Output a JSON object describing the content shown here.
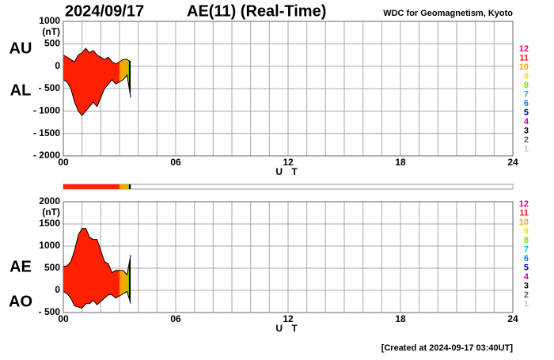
{
  "header": {
    "date": "2024/09/17",
    "title": "AE(11) (Real-Time)",
    "source": "WDC for Geomagnetism, Kyoto"
  },
  "footer": "[Created at 2024-09-17 03:40UT]",
  "station_legend": {
    "labels": [
      "12",
      "11",
      "10",
      "9",
      "8",
      "7",
      "6",
      "5",
      "4",
      "3",
      "2",
      "1"
    ],
    "colors": [
      "#e8007a",
      "#ff2000",
      "#ffa500",
      "#ffe000",
      "#80e000",
      "#00c0c0",
      "#0080ff",
      "#0000c0",
      "#c000c0",
      "#000000",
      "#606060",
      "#c0c0c0"
    ]
  },
  "coverage": [
    {
      "start": 0,
      "end": 3.0,
      "stations": 11
    },
    {
      "start": 3.0,
      "end": 3.4,
      "stations": 10
    },
    {
      "start": 3.4,
      "end": 3.5,
      "stations": 8
    },
    {
      "start": 3.5,
      "end": 3.6,
      "stations": 3
    }
  ],
  "chart_data": [
    {
      "type": "area",
      "ylabel": "(nT)",
      "xlabel": "U T",
      "xlim": [
        0,
        24
      ],
      "xticks": [
        {
          "value": 0,
          "label": "00"
        },
        {
          "value": 6,
          "label": "06"
        },
        12,
        18,
        24
      ],
      "ylim": [
        -2000,
        1000
      ],
      "yticks": [
        1000,
        500,
        0,
        {
          "value": -500,
          "label": "- 500"
        },
        {
          "value": -1000,
          "label": "- 1000"
        },
        {
          "value": -1500,
          "label": "- 1500"
        },
        {
          "value": -2000,
          "label": "- 2000"
        }
      ],
      "grid": true,
      "x": [
        0,
        0.2,
        0.4,
        0.6,
        0.8,
        1.0,
        1.2,
        1.4,
        1.6,
        1.8,
        2.0,
        2.2,
        2.4,
        2.6,
        2.8,
        3.0,
        3.2,
        3.4,
        3.6
      ],
      "series": [
        {
          "name": "AU",
          "color": "#000000",
          "values": [
            250,
            200,
            150,
            100,
            250,
            300,
            400,
            300,
            350,
            250,
            200,
            150,
            200,
            100,
            50,
            100,
            150,
            150,
            100
          ]
        },
        {
          "name": "AL",
          "color": "#000000",
          "values": [
            -300,
            -350,
            -500,
            -800,
            -1000,
            -1100,
            -1000,
            -900,
            -800,
            -900,
            -700,
            -500,
            -400,
            -300,
            -400,
            -350,
            -300,
            -200,
            -700
          ]
        }
      ]
    },
    {
      "type": "area",
      "ylabel": "(nT)",
      "xlabel": "U T",
      "xlim": [
        0,
        24
      ],
      "xticks": [
        {
          "value": 0,
          "label": "00"
        },
        {
          "value": 6,
          "label": "06"
        },
        12,
        18,
        24
      ],
      "ylim": [
        -500,
        2000
      ],
      "yticks": [
        2000,
        1500,
        1000,
        500,
        0,
        {
          "value": -500,
          "label": "- 500"
        }
      ],
      "grid": true,
      "x": [
        0,
        0.2,
        0.4,
        0.6,
        0.8,
        1.0,
        1.2,
        1.4,
        1.6,
        1.8,
        2.0,
        2.2,
        2.4,
        2.6,
        2.8,
        3.0,
        3.2,
        3.4,
        3.6
      ],
      "series": [
        {
          "name": "AE",
          "color": "#000000",
          "values": [
            550,
            550,
            650,
            900,
            1250,
            1400,
            1400,
            1200,
            1150,
            1150,
            900,
            650,
            600,
            400,
            450,
            450,
            450,
            350,
            800
          ]
        },
        {
          "name": "AO",
          "color": "#000000",
          "values": [
            -25,
            -75,
            -175,
            -350,
            -375,
            -400,
            -300,
            -300,
            -225,
            -325,
            -250,
            -175,
            -100,
            -100,
            -175,
            -125,
            -75,
            -25,
            -300
          ]
        }
      ]
    }
  ]
}
